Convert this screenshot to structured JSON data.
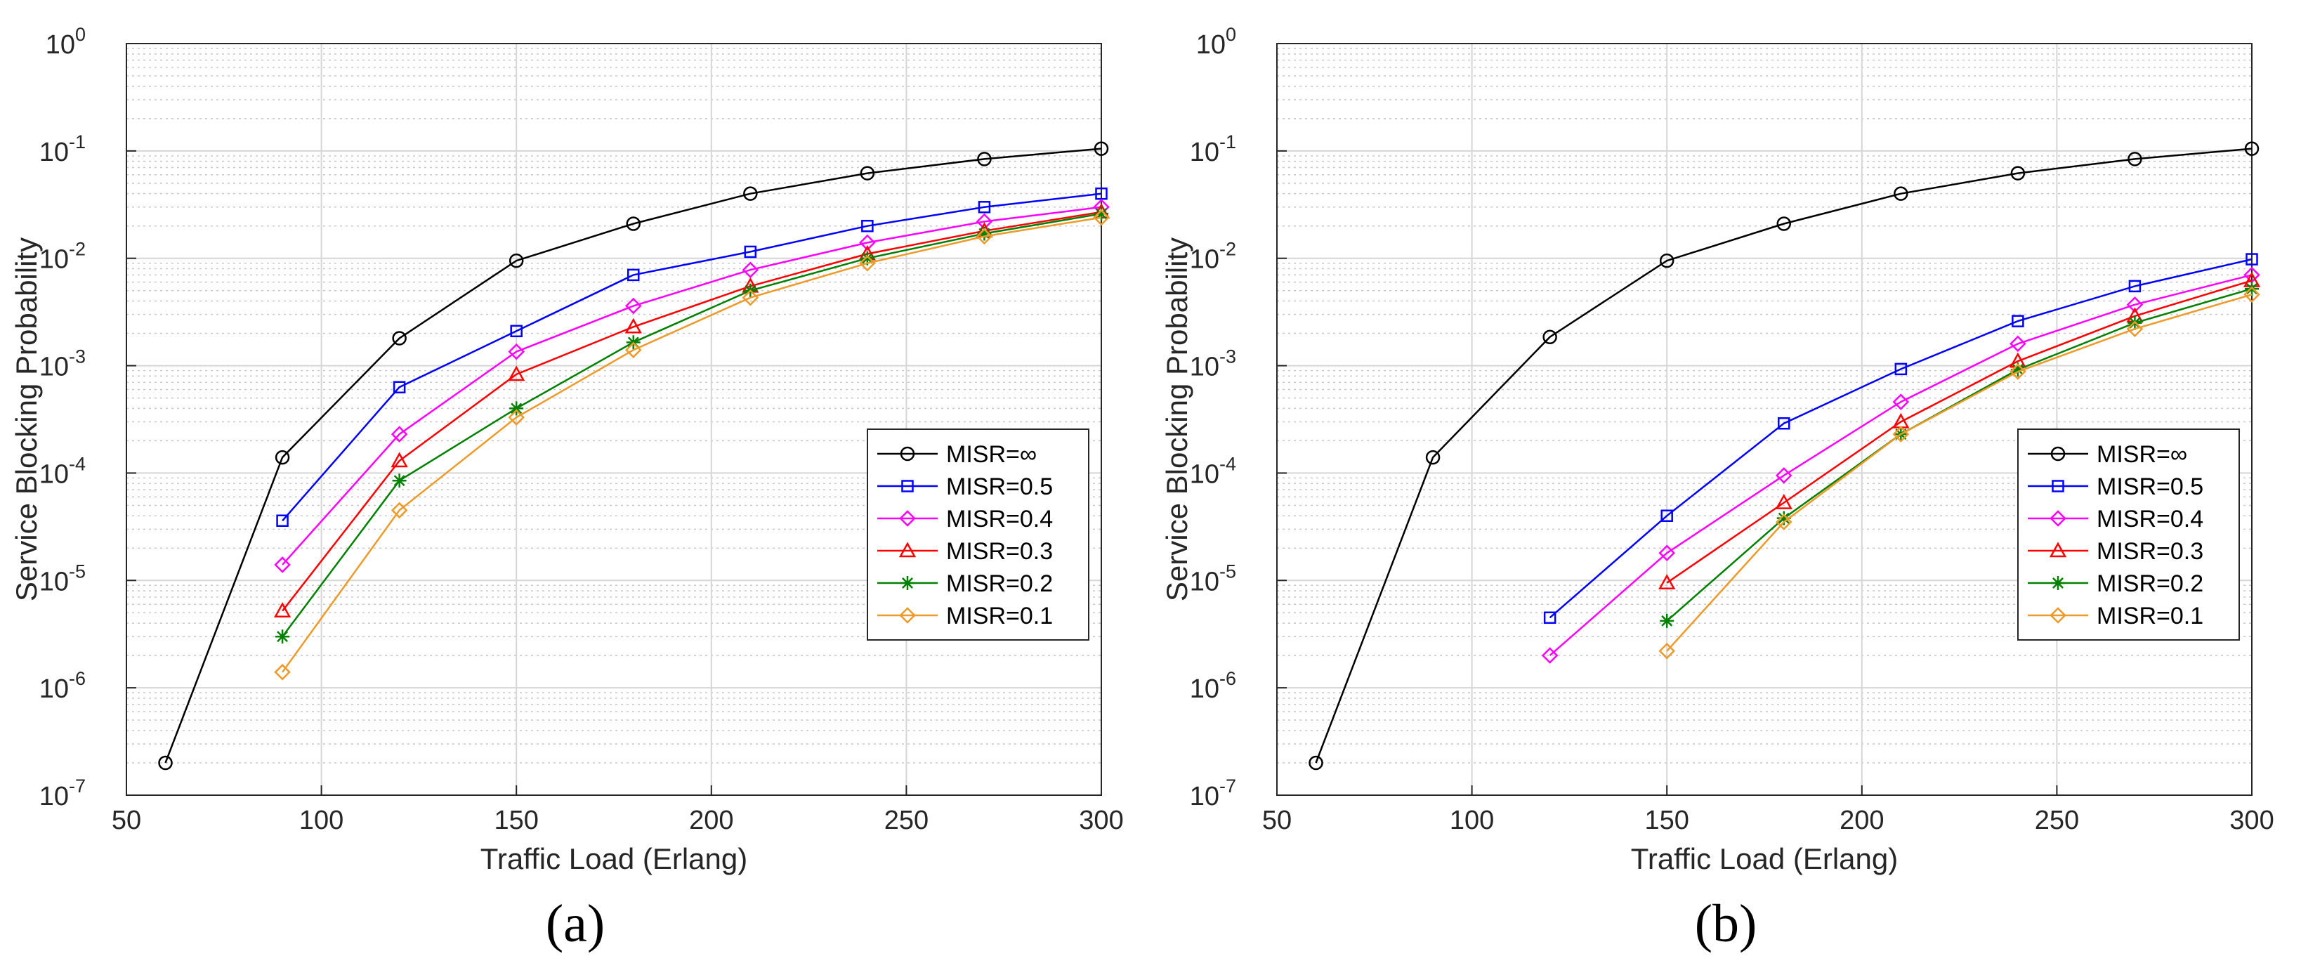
{
  "panels": [
    {
      "caption": "(a)",
      "chart_data": {
        "type": "line",
        "yscale": "log",
        "xlabel": "Traffic Load (Erlang)",
        "ylabel": "Service Blocking Probability",
        "xlim": [
          50,
          300
        ],
        "ylim": [
          1e-07,
          1
        ],
        "xticks": [
          50,
          100,
          150,
          200,
          250,
          300
        ],
        "yticks": [
          {
            "exp": -7,
            "label": "10",
            "sup": "-7"
          },
          {
            "exp": -6,
            "label": "10",
            "sup": "-6"
          },
          {
            "exp": -5,
            "label": "10",
            "sup": "-5"
          },
          {
            "exp": -4,
            "label": "10",
            "sup": "-4"
          },
          {
            "exp": -3,
            "label": "10",
            "sup": "-3"
          },
          {
            "exp": -2,
            "label": "10",
            "sup": "-2"
          },
          {
            "exp": -1,
            "label": "10",
            "sup": "-1"
          },
          {
            "exp": 0,
            "label": "10",
            "sup": "0"
          }
        ],
        "grid": true,
        "legend_position": "lower-right",
        "series": [
          {
            "name": "MISR=∞",
            "color": "#000000",
            "marker": "circle",
            "x": [
              60,
              90,
              120,
              150,
              180,
              210,
              240,
              270,
              300
            ],
            "y": [
              2e-07,
              0.00014,
              0.0018,
              0.0095,
              0.021,
              0.04,
              0.062,
              0.084,
              0.105
            ]
          },
          {
            "name": "MISR=0.5",
            "color": "#0000ff",
            "marker": "square",
            "x": [
              90,
              120,
              150,
              180,
              210,
              240,
              270,
              300
            ],
            "y": [
              3.6e-05,
              0.00063,
              0.0021,
              0.007,
              0.0115,
              0.02,
              0.03,
              0.04
            ]
          },
          {
            "name": "MISR=0.4",
            "color": "#ff00ff",
            "marker": "diamond",
            "x": [
              90,
              120,
              150,
              180,
              210,
              240,
              270,
              300
            ],
            "y": [
              1.4e-05,
              0.00023,
              0.00135,
              0.0036,
              0.0078,
              0.014,
              0.022,
              0.03
            ]
          },
          {
            "name": "MISR=0.3",
            "color": "#ff0000",
            "marker": "triangle",
            "x": [
              90,
              120,
              150,
              180,
              210,
              240,
              270,
              300
            ],
            "y": [
              5.2e-06,
              0.00013,
              0.00083,
              0.0023,
              0.0055,
              0.011,
              0.018,
              0.027
            ]
          },
          {
            "name": "MISR=0.2",
            "color": "#008000",
            "marker": "asterisk",
            "x": [
              90,
              120,
              150,
              180,
              210,
              240,
              270,
              300
            ],
            "y": [
              3e-06,
              8.5e-05,
              0.0004,
              0.00165,
              0.005,
              0.01,
              0.017,
              0.026
            ]
          },
          {
            "name": "MISR=0.1",
            "color": "#ee9a2a",
            "marker": "diamond",
            "x": [
              90,
              120,
              150,
              180,
              210,
              240,
              270,
              300
            ],
            "y": [
              1.4e-06,
              4.5e-05,
              0.00033,
              0.0014,
              0.0043,
              0.009,
              0.016,
              0.024
            ]
          }
        ]
      }
    },
    {
      "caption": "(b)",
      "chart_data": {
        "type": "line",
        "yscale": "log",
        "xlabel": "Traffic Load (Erlang)",
        "ylabel": "Service Blocking Probability",
        "xlim": [
          50,
          300
        ],
        "ylim": [
          1e-07,
          1
        ],
        "xticks": [
          50,
          100,
          150,
          200,
          250,
          300
        ],
        "yticks": [
          {
            "exp": -7,
            "label": "10",
            "sup": "-7"
          },
          {
            "exp": -6,
            "label": "10",
            "sup": "-6"
          },
          {
            "exp": -5,
            "label": "10",
            "sup": "-5"
          },
          {
            "exp": -4,
            "label": "10",
            "sup": "-4"
          },
          {
            "exp": -3,
            "label": "10",
            "sup": "-3"
          },
          {
            "exp": -2,
            "label": "10",
            "sup": "-2"
          },
          {
            "exp": -1,
            "label": "10",
            "sup": "-1"
          },
          {
            "exp": 0,
            "label": "10",
            "sup": "0"
          }
        ],
        "grid": true,
        "legend_position": "lower-right",
        "series": [
          {
            "name": "MISR=∞",
            "color": "#000000",
            "marker": "circle",
            "x": [
              60,
              90,
              120,
              150,
              180,
              210,
              240,
              270,
              300
            ],
            "y": [
              2e-07,
              0.00014,
              0.00185,
              0.0095,
              0.021,
              0.04,
              0.062,
              0.084,
              0.105
            ]
          },
          {
            "name": "MISR=0.5",
            "color": "#0000ff",
            "marker": "square",
            "x": [
              120,
              150,
              180,
              210,
              240,
              270,
              300
            ],
            "y": [
              4.5e-06,
              4e-05,
              0.00029,
              0.00093,
              0.0026,
              0.0055,
              0.0098
            ]
          },
          {
            "name": "MISR=0.4",
            "color": "#ff00ff",
            "marker": "diamond",
            "x": [
              120,
              150,
              180,
              210,
              240,
              270,
              300
            ],
            "y": [
              2e-06,
              1.8e-05,
              9.5e-05,
              0.00046,
              0.0016,
              0.0037,
              0.007
            ]
          },
          {
            "name": "MISR=0.3",
            "color": "#ff0000",
            "marker": "triangle",
            "x": [
              150,
              180,
              210,
              240,
              270,
              300
            ],
            "y": [
              9.5e-06,
              5.3e-05,
              0.0003,
              0.0011,
              0.0029,
              0.0062
            ]
          },
          {
            "name": "MISR=0.2",
            "color": "#008000",
            "marker": "asterisk",
            "x": [
              150,
              180,
              210,
              240,
              270,
              300
            ],
            "y": [
              4.2e-06,
              3.8e-05,
              0.00023,
              0.00092,
              0.0025,
              0.0052
            ]
          },
          {
            "name": "MISR=0.1",
            "color": "#ee9a2a",
            "marker": "diamond",
            "x": [
              150,
              180,
              210,
              240,
              270,
              300
            ],
            "y": [
              2.2e-06,
              3.5e-05,
              0.00023,
              0.00088,
              0.0022,
              0.0046
            ]
          }
        ]
      }
    }
  ]
}
